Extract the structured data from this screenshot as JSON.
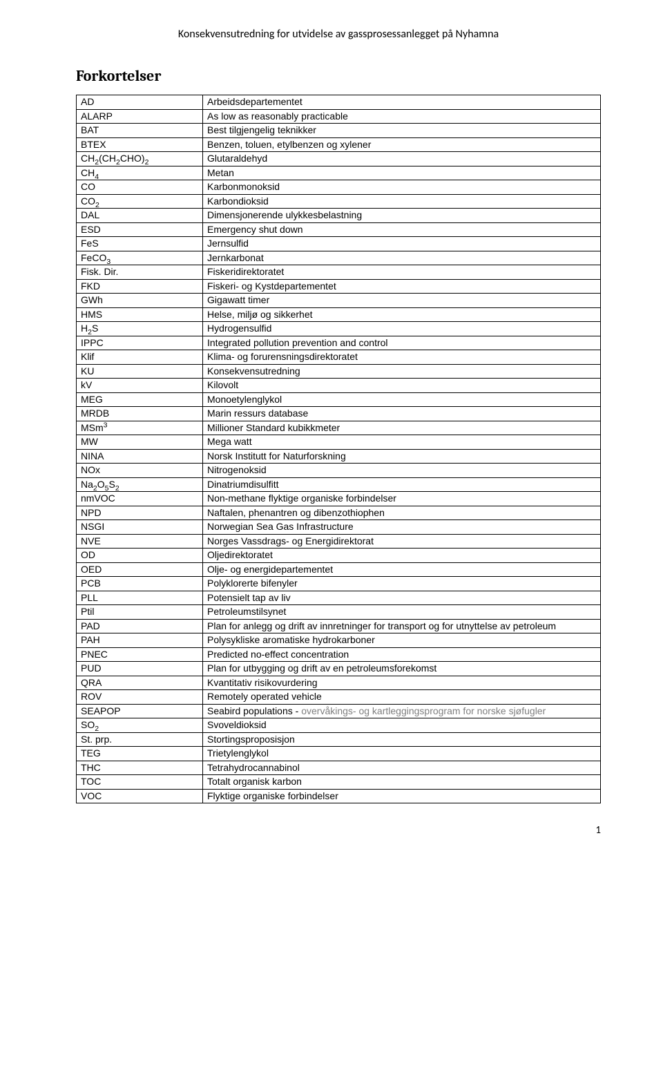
{
  "header": {
    "title": "Konsekvensutredning for utvidelse av gassprosessanlegget på Nyhamna"
  },
  "section": {
    "heading": "Forkortelser"
  },
  "rows": [
    {
      "abbr_html": "AD",
      "def_html": "Arbeidsdepartementet"
    },
    {
      "abbr_html": "ALARP",
      "def_html": "As low as reasonably practicable"
    },
    {
      "abbr_html": "BAT",
      "def_html": "Best tilgjengelig teknikker"
    },
    {
      "abbr_html": "BTEX",
      "def_html": "Benzen, toluen, etylbenzen og xylener"
    },
    {
      "abbr_html": "CH<span class=\"sub\">2</span>(CH<span class=\"sub\">2</span>CHO)<span class=\"sub\">2</span>",
      "def_html": "Glutaraldehyd"
    },
    {
      "abbr_html": "CH<span class=\"sub\">4</span>",
      "def_html": "Metan"
    },
    {
      "abbr_html": "CO",
      "def_html": "Karbonmonoksid"
    },
    {
      "abbr_html": "CO<span class=\"sub\">2</span>",
      "def_html": "Karbondioksid"
    },
    {
      "abbr_html": "DAL",
      "def_html": "Dimensjonerende ulykkesbelastning"
    },
    {
      "abbr_html": "ESD",
      "def_html": "Emergency shut down"
    },
    {
      "abbr_html": "FeS",
      "def_html": "Jernsulfid"
    },
    {
      "abbr_html": "FeCO<span class=\"sub\">3</span>",
      "def_html": "Jernkarbonat"
    },
    {
      "abbr_html": "Fisk. Dir.",
      "def_html": "Fiskeridirektoratet"
    },
    {
      "abbr_html": "FKD",
      "def_html": "Fiskeri- og Kystdepartementet"
    },
    {
      "abbr_html": "GWh",
      "def_html": "Gigawatt timer"
    },
    {
      "abbr_html": "HMS",
      "def_html": "Helse, miljø og sikkerhet"
    },
    {
      "abbr_html": "H<span class=\"sub\">2</span>S",
      "def_html": "Hydrogensulfid"
    },
    {
      "abbr_html": "IPPC",
      "def_html": "Integrated pollution prevention and control"
    },
    {
      "abbr_html": "Klif",
      "def_html": "Klima- og forurensningsdirektoratet"
    },
    {
      "abbr_html": "KU",
      "def_html": "Konsekvensutredning"
    },
    {
      "abbr_html": "kV",
      "def_html": "Kilovolt"
    },
    {
      "abbr_html": "MEG",
      "def_html": "Monoetylenglykol"
    },
    {
      "abbr_html": "MRDB",
      "def_html": "Marin ressurs database"
    },
    {
      "abbr_html": "MSm<span class=\"sup\">3</span>",
      "def_html": "Millioner Standard kubikkmeter"
    },
    {
      "abbr_html": "MW",
      "def_html": "Mega watt"
    },
    {
      "abbr_html": "NINA",
      "def_html": "Norsk Institutt for Naturforskning"
    },
    {
      "abbr_html": "NOx",
      "def_html": "Nitrogenoksid"
    },
    {
      "abbr_html": "Na<span class=\"sub\">2</span>O<span class=\"sub\">5</span>S<span class=\"sub\">2</span>",
      "def_html": "Dinatriumdisulfitt"
    },
    {
      "abbr_html": "nmVOC",
      "def_html": "Non-methane flyktige organiske forbindelser"
    },
    {
      "abbr_html": "NPD",
      "def_html": "Naftalen, phenantren og dibenzothiophen"
    },
    {
      "abbr_html": "NSGI",
      "def_html": "Norwegian Sea Gas Infrastructure"
    },
    {
      "abbr_html": "NVE",
      "def_html": "Norges Vassdrags- og Energidirektorat"
    },
    {
      "abbr_html": "OD",
      "def_html": "Oljedirektoratet"
    },
    {
      "abbr_html": "OED",
      "def_html": "Olje- og energidepartementet"
    },
    {
      "abbr_html": "PCB",
      "def_html": "Polyklorerte bifenyler"
    },
    {
      "abbr_html": "PLL",
      "def_html": "Potensielt tap av liv"
    },
    {
      "abbr_html": "Ptil",
      "def_html": "Petroleumstilsynet"
    },
    {
      "abbr_html": "PAD",
      "def_html": "Plan for anlegg og drift av innretninger for transport og for utnyttelse av petroleum"
    },
    {
      "abbr_html": "PAH",
      "def_html": "Polysykliske aromatiske hydrokarboner"
    },
    {
      "abbr_html": "PNEC",
      "def_html": "Predicted no-effect concentration"
    },
    {
      "abbr_html": "PUD",
      "def_html": "Plan for utbygging og drift av en petroleumsforekomst"
    },
    {
      "abbr_html": "QRA",
      "def_html": "Kvantitativ risikovurdering"
    },
    {
      "abbr_html": "ROV",
      "def_html": "Remotely operated vehicle"
    },
    {
      "abbr_html": "SEAPOP",
      "def_html": "Seabird populations - <span class=\"gray\">overvåkings- og kartleggingsprogram for norske sjøfugler</span>"
    },
    {
      "abbr_html": "SO<span class=\"sub\">2</span>",
      "def_html": "Svoveldioksid"
    },
    {
      "abbr_html": "St. prp.",
      "def_html": "Stortingsproposisjon"
    },
    {
      "abbr_html": "TEG",
      "def_html": "Trietylenglykol"
    },
    {
      "abbr_html": "THC",
      "def_html": "Tetrahydrocannabinol"
    },
    {
      "abbr_html": "TOC",
      "def_html": "Totalt organisk karbon"
    },
    {
      "abbr_html": "VOC",
      "def_html": "Flyktige organiske forbindelser"
    }
  ],
  "footer": {
    "page_number": "1"
  },
  "style": {
    "body_font": "Cambria",
    "cell_font": "Arial",
    "cell_font_size": 14,
    "heading_font_size": 22,
    "header_font_size": 16,
    "border_color": "#000000",
    "gray_text_color": "#7f7f7f",
    "background_color": "#ffffff"
  }
}
